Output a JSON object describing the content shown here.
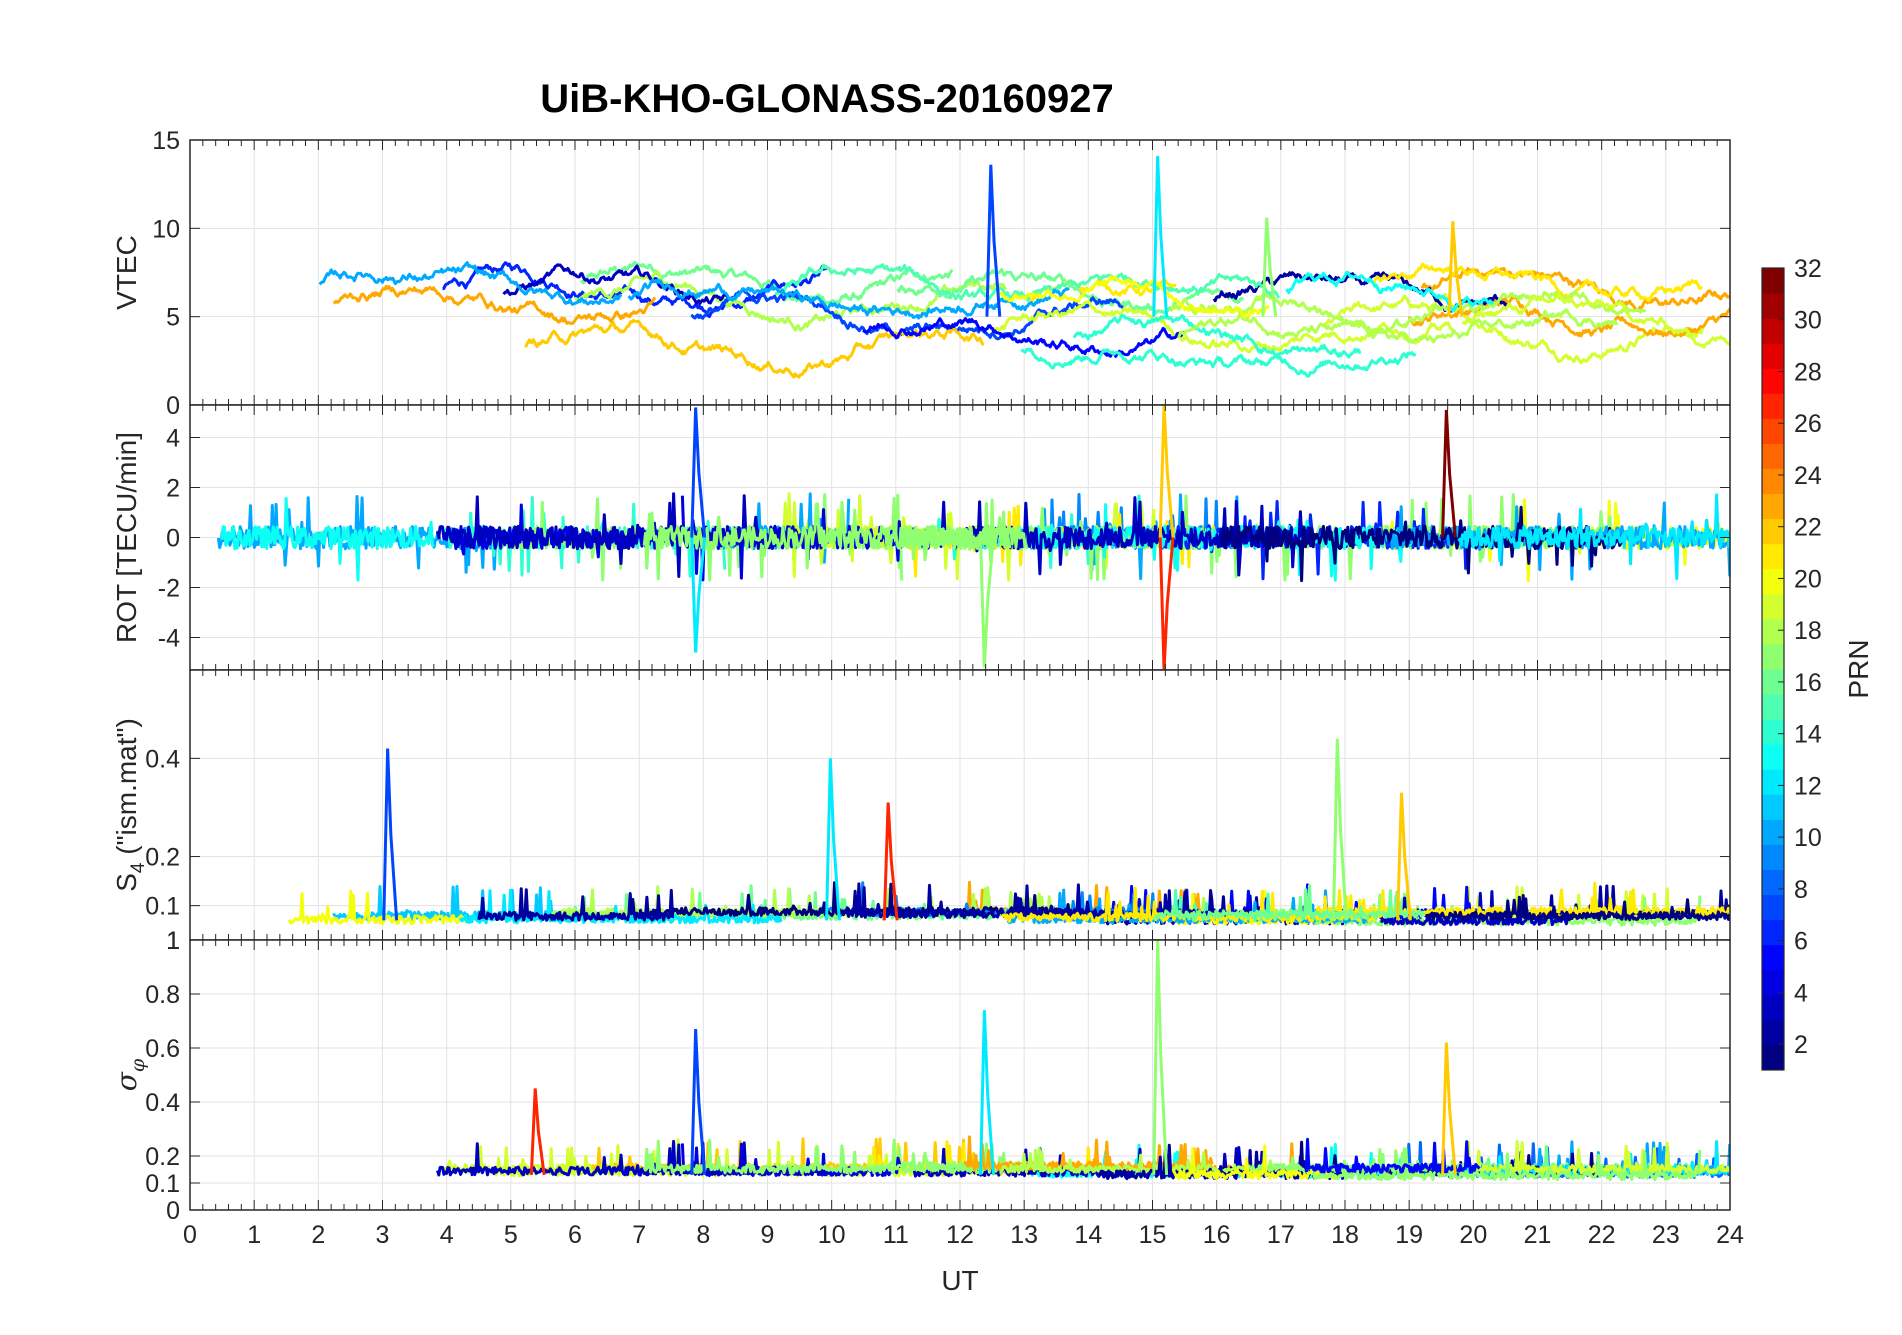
{
  "chart_data": {
    "type": "line",
    "title": "UiB-KHO-GLONASS-20160927",
    "xlabel": "UT",
    "x_ticks": [
      "0",
      "1",
      "2",
      "3",
      "4",
      "5",
      "6",
      "7",
      "8",
      "9",
      "10",
      "11",
      "12",
      "13",
      "14",
      "15",
      "16",
      "17",
      "18",
      "19",
      "20",
      "21",
      "22",
      "23",
      "24"
    ],
    "xlim": [
      0,
      24
    ],
    "grid": true,
    "colorbar": {
      "label": "PRN",
      "colormap": "jet",
      "range": [
        1,
        32
      ],
      "ticks": [
        "2",
        "4",
        "6",
        "8",
        "10",
        "12",
        "14",
        "16",
        "18",
        "20",
        "22",
        "24",
        "26",
        "28",
        "30",
        "32"
      ],
      "colors_low_to_high": [
        "#00008f",
        "#0000ff",
        "#0080ff",
        "#00ffff",
        "#80ff80",
        "#ffff00",
        "#ff8000",
        "#ff0000",
        "#800000"
      ]
    },
    "panels": [
      {
        "name": "VTEC",
        "ylabel": "VTEC",
        "ylim": [
          0,
          15
        ],
        "y_ticks": [
          "0",
          "5",
          "10",
          "15"
        ],
        "typical_level": 5,
        "spikes": [
          [
            12.5,
            13.6
          ],
          [
            15.1,
            14.1
          ],
          [
            16.8,
            10.6
          ],
          [
            19.7,
            10.4
          ]
        ]
      },
      {
        "name": "ROT",
        "ylabel": "ROT [TECU/min]",
        "ylim": [
          -5.3,
          5.3
        ],
        "y_ticks": [
          "-4",
          "-2",
          "0",
          "2",
          "4"
        ],
        "typical_level": 0,
        "spikes": [
          [
            7.9,
            5.2
          ],
          [
            7.9,
            -4.6
          ],
          [
            12.4,
            -5.2
          ],
          [
            15.2,
            5.3
          ],
          [
            15.2,
            -5.3
          ],
          [
            19.6,
            5.1
          ]
        ]
      },
      {
        "name": "S4",
        "ylabel_main": "S",
        "ylabel_sub": "4",
        "ylabel_rest": " (\"ism.mat\")",
        "ylim": [
          0.03,
          0.58
        ],
        "y_ticks": [
          "0.1",
          "0.2",
          "0.4"
        ],
        "tick_overlap_label": "1",
        "typical_level": 0.07,
        "spikes": [
          [
            3.1,
            0.42
          ],
          [
            10.0,
            0.4
          ],
          [
            17.9,
            0.44
          ],
          [
            18.9,
            0.33
          ],
          [
            10.9,
            0.31
          ]
        ]
      },
      {
        "name": "sigma_phi",
        "ylabel_main": "σ",
        "ylabel_sub": "φ",
        "ylim": [
          0,
          1
        ],
        "y_ticks": [
          "0",
          "0.1",
          "0.2",
          "0.4",
          "0.6",
          "0.8",
          "1"
        ],
        "typical_level": 0.13,
        "spikes": [
          [
            7.9,
            0.67
          ],
          [
            12.4,
            0.74
          ],
          [
            15.1,
            1.0
          ],
          [
            19.6,
            0.62
          ],
          [
            5.4,
            0.45
          ]
        ]
      }
    ]
  }
}
